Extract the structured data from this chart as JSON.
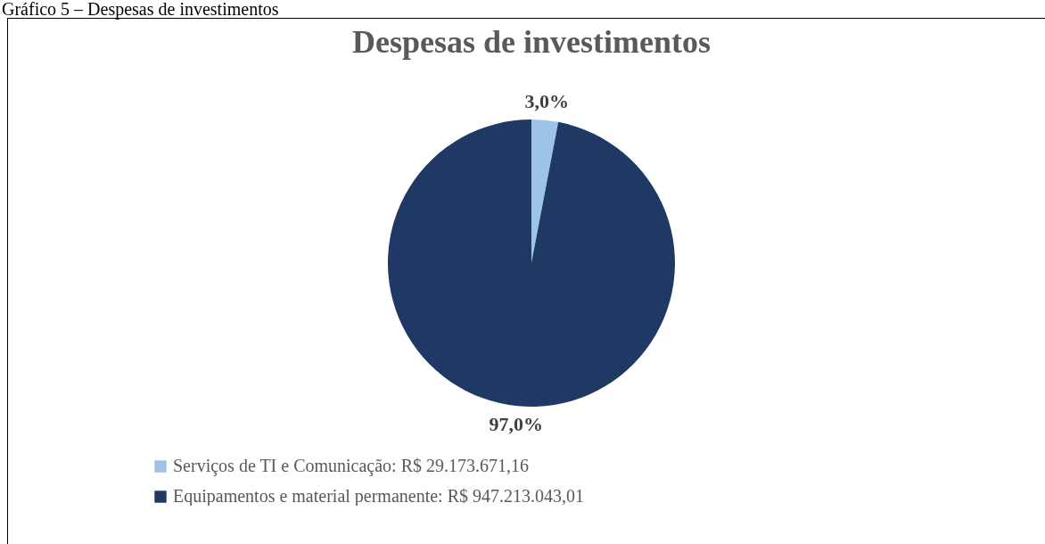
{
  "chart_data": {
    "type": "pie",
    "title": "Despesas de investimentos",
    "categories": [
      "Serviços de TI e Comunicação: R$ 29.173.671,16",
      "Equipamentos e material permanente: R$ 947.213.043,01"
    ],
    "values": [
      3.0,
      97.0
    ],
    "colors": [
      "#9dc3e6",
      "#1f3864"
    ],
    "value_labels": [
      "3,0%",
      "97,0%"
    ],
    "legend": "bottom left",
    "annotations": [
      "Gráfico 5 – Despesas de investimentos"
    ]
  }
}
